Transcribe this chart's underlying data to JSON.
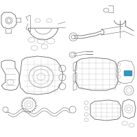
{
  "bg_color": "#ffffff",
  "lc": "#aaaaaa",
  "dc": "#666666",
  "hc": "#1a9fd4",
  "figsize": [
    2.0,
    2.0
  ],
  "dpi": 100,
  "lw": 0.4,
  "lw2": 0.6
}
